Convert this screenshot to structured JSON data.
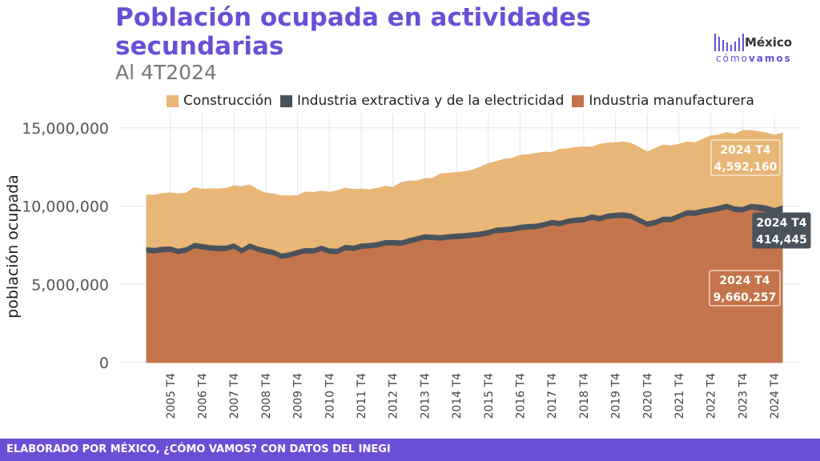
{
  "header": {
    "title": "Población ocupada en actividades secundarias",
    "subtitle": "Al 4T2024"
  },
  "logo": {
    "name": "México",
    "tag_a": "cómo",
    "tag_b": "vamos"
  },
  "footer": {
    "text": "ELABORADO POR MÉXICO, ¿CÓMO VAMOS? CON DATOS DEL INEGI"
  },
  "colors": {
    "construccion": "#e8b676",
    "extractiva": "#4a525c",
    "manufacturera": "#c4744a",
    "accent": "#6a4fd6"
  },
  "chart_data": {
    "type": "area",
    "stacked": true,
    "ylabel": "población ocupada",
    "ylim": [
      0,
      15500000
    ],
    "yticks": [
      0,
      5000000,
      10000000,
      15000000
    ],
    "ytick_labels": [
      "0",
      "5,000,000",
      "10,000,000",
      "15,000,000"
    ],
    "grid": true,
    "legend_position": "top",
    "x_start": "2005 T1",
    "xtick_labels": [
      "2005 T4",
      "2006 T4",
      "2007 T4",
      "2008 T4",
      "2009 T4",
      "2010 T4",
      "2011 T4",
      "2012 T4",
      "2013 T4",
      "2014 T4",
      "2015 T4",
      "2016 T4",
      "2017 T4",
      "2018 T4",
      "2019 T4",
      "2020 T4",
      "2021 T4",
      "2022 T4",
      "2023 T4",
      "2024 T4"
    ],
    "series": [
      {
        "name": "Industria manufacturera",
        "color": "#c4744a",
        "values": [
          7050000,
          7000000,
          7080000,
          7100000,
          6950000,
          7050000,
          7330000,
          7250000,
          7180000,
          7150000,
          7150000,
          7300000,
          7000000,
          7300000,
          7100000,
          6980000,
          6880000,
          6650000,
          6730000,
          6880000,
          7000000,
          6980000,
          7150000,
          6980000,
          6950000,
          7200000,
          7150000,
          7280000,
          7320000,
          7380000,
          7500000,
          7520000,
          7480000,
          7620000,
          7750000,
          7880000,
          7850000,
          7820000,
          7880000,
          7920000,
          7950000,
          8000000,
          8050000,
          8150000,
          8300000,
          8330000,
          8380000,
          8480000,
          8530000,
          8550000,
          8660000,
          8800000,
          8730000,
          8880000,
          8950000,
          8980000,
          9150000,
          9050000,
          9200000,
          9250000,
          9280000,
          9200000,
          8950000,
          8700000,
          8800000,
          9000000,
          9000000,
          9200000,
          9420000,
          9400000,
          9520000,
          9600000,
          9700000,
          9830000,
          9650000,
          9620000,
          9800000,
          9730000,
          9650000,
          9480000,
          9660257
        ]
      },
      {
        "name": "Industria extractiva y de la electricidad",
        "color": "#4a525c",
        "values": [
          350000,
          350000,
          350000,
          350000,
          350000,
          350000,
          350000,
          350000,
          350000,
          350000,
          350000,
          350000,
          350000,
          350000,
          350000,
          350000,
          350000,
          350000,
          350000,
          350000,
          350000,
          350000,
          350000,
          350000,
          350000,
          350000,
          350000,
          350000,
          350000,
          350000,
          350000,
          350000,
          350000,
          350000,
          350000,
          350000,
          350000,
          350000,
          350000,
          350000,
          350000,
          350000,
          350000,
          350000,
          350000,
          350000,
          350000,
          350000,
          350000,
          350000,
          350000,
          350000,
          350000,
          350000,
          350000,
          350000,
          350000,
          350000,
          350000,
          350000,
          350000,
          350000,
          350000,
          350000,
          350000,
          350000,
          350000,
          350000,
          350000,
          350000,
          350000,
          350000,
          350000,
          350000,
          350000,
          350000,
          370000,
          400000,
          410000,
          420000,
          414445
        ]
      },
      {
        "name": "Construcción",
        "color": "#e8b676",
        "values": [
          3300000,
          3350000,
          3370000,
          3400000,
          3480000,
          3440000,
          3500000,
          3480000,
          3570000,
          3600000,
          3630000,
          3650000,
          3900000,
          3700000,
          3600000,
          3500000,
          3550000,
          3650000,
          3570000,
          3450000,
          3550000,
          3540000,
          3470000,
          3550000,
          3690000,
          3600000,
          3570000,
          3450000,
          3380000,
          3400000,
          3420000,
          3330000,
          3670000,
          3630000,
          3500000,
          3530000,
          3580000,
          3900000,
          3870000,
          3880000,
          3900000,
          3950000,
          4100000,
          4220000,
          4200000,
          4320000,
          4320000,
          4420000,
          4410000,
          4470000,
          4440000,
          4280000,
          4550000,
          4440000,
          4450000,
          4450000,
          4270000,
          4550000,
          4480000,
          4450000,
          4470000,
          4460000,
          4440000,
          4410000,
          4550000,
          4550000,
          4500000,
          4410000,
          4330000,
          4300000,
          4420000,
          4540000,
          4500000,
          4520000,
          4600000,
          4850000,
          4680000,
          4630000,
          4620000,
          4630000,
          4592160
        ]
      }
    ],
    "annotations": [
      {
        "series": "Construcción",
        "line1": "2024 T4",
        "line2": "4,592,160"
      },
      {
        "series": "Industria extractiva y de la electricidad",
        "line1": "2024 T4",
        "line2": "414,445"
      },
      {
        "series": "Industria manufacturera",
        "line1": "2024 T4",
        "line2": "9,660,257"
      }
    ]
  }
}
